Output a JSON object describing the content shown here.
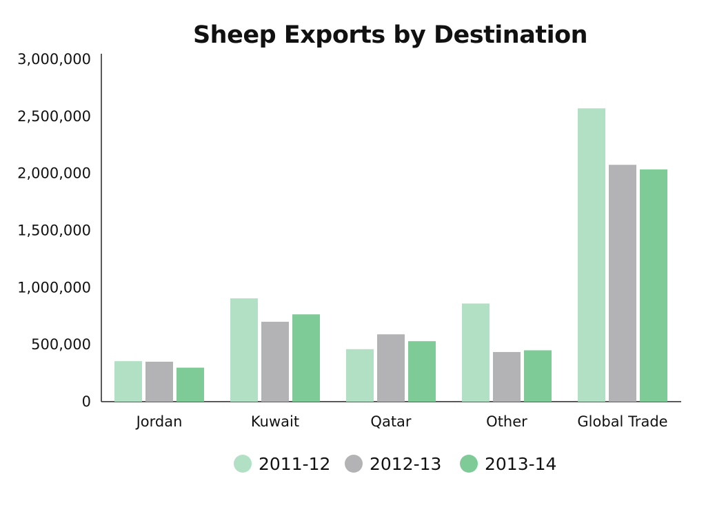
{
  "chart_data": {
    "type": "bar",
    "title": "Sheep Exports by Destination",
    "xlabel": "",
    "ylabel": "",
    "categories": [
      "Jordan",
      "Kuwait",
      "Qatar",
      "Other",
      "Global Trade"
    ],
    "series": [
      {
        "name": "2011-12",
        "color": "#b2e0c5",
        "values": [
          355000,
          905000,
          460000,
          860000,
          2570000
        ]
      },
      {
        "name": "2012-13",
        "color": "#b3b3b5",
        "values": [
          350000,
          700000,
          590000,
          435000,
          2075000
        ]
      },
      {
        "name": "2013-14",
        "color": "#7fcb98",
        "values": [
          298000,
          765000,
          530000,
          450000,
          2035000
        ]
      }
    ],
    "ylim": [
      0,
      3000000
    ],
    "yticks": [
      0,
      500000,
      1000000,
      1500000,
      2000000,
      2500000,
      3000000
    ],
    "ytick_labels": [
      "0",
      "500,000",
      "1,000,000",
      "1,500,000",
      "2,000,000",
      "2,500,000",
      "3,000,000"
    ],
    "grid": false,
    "legend_position": "bottom-center"
  }
}
